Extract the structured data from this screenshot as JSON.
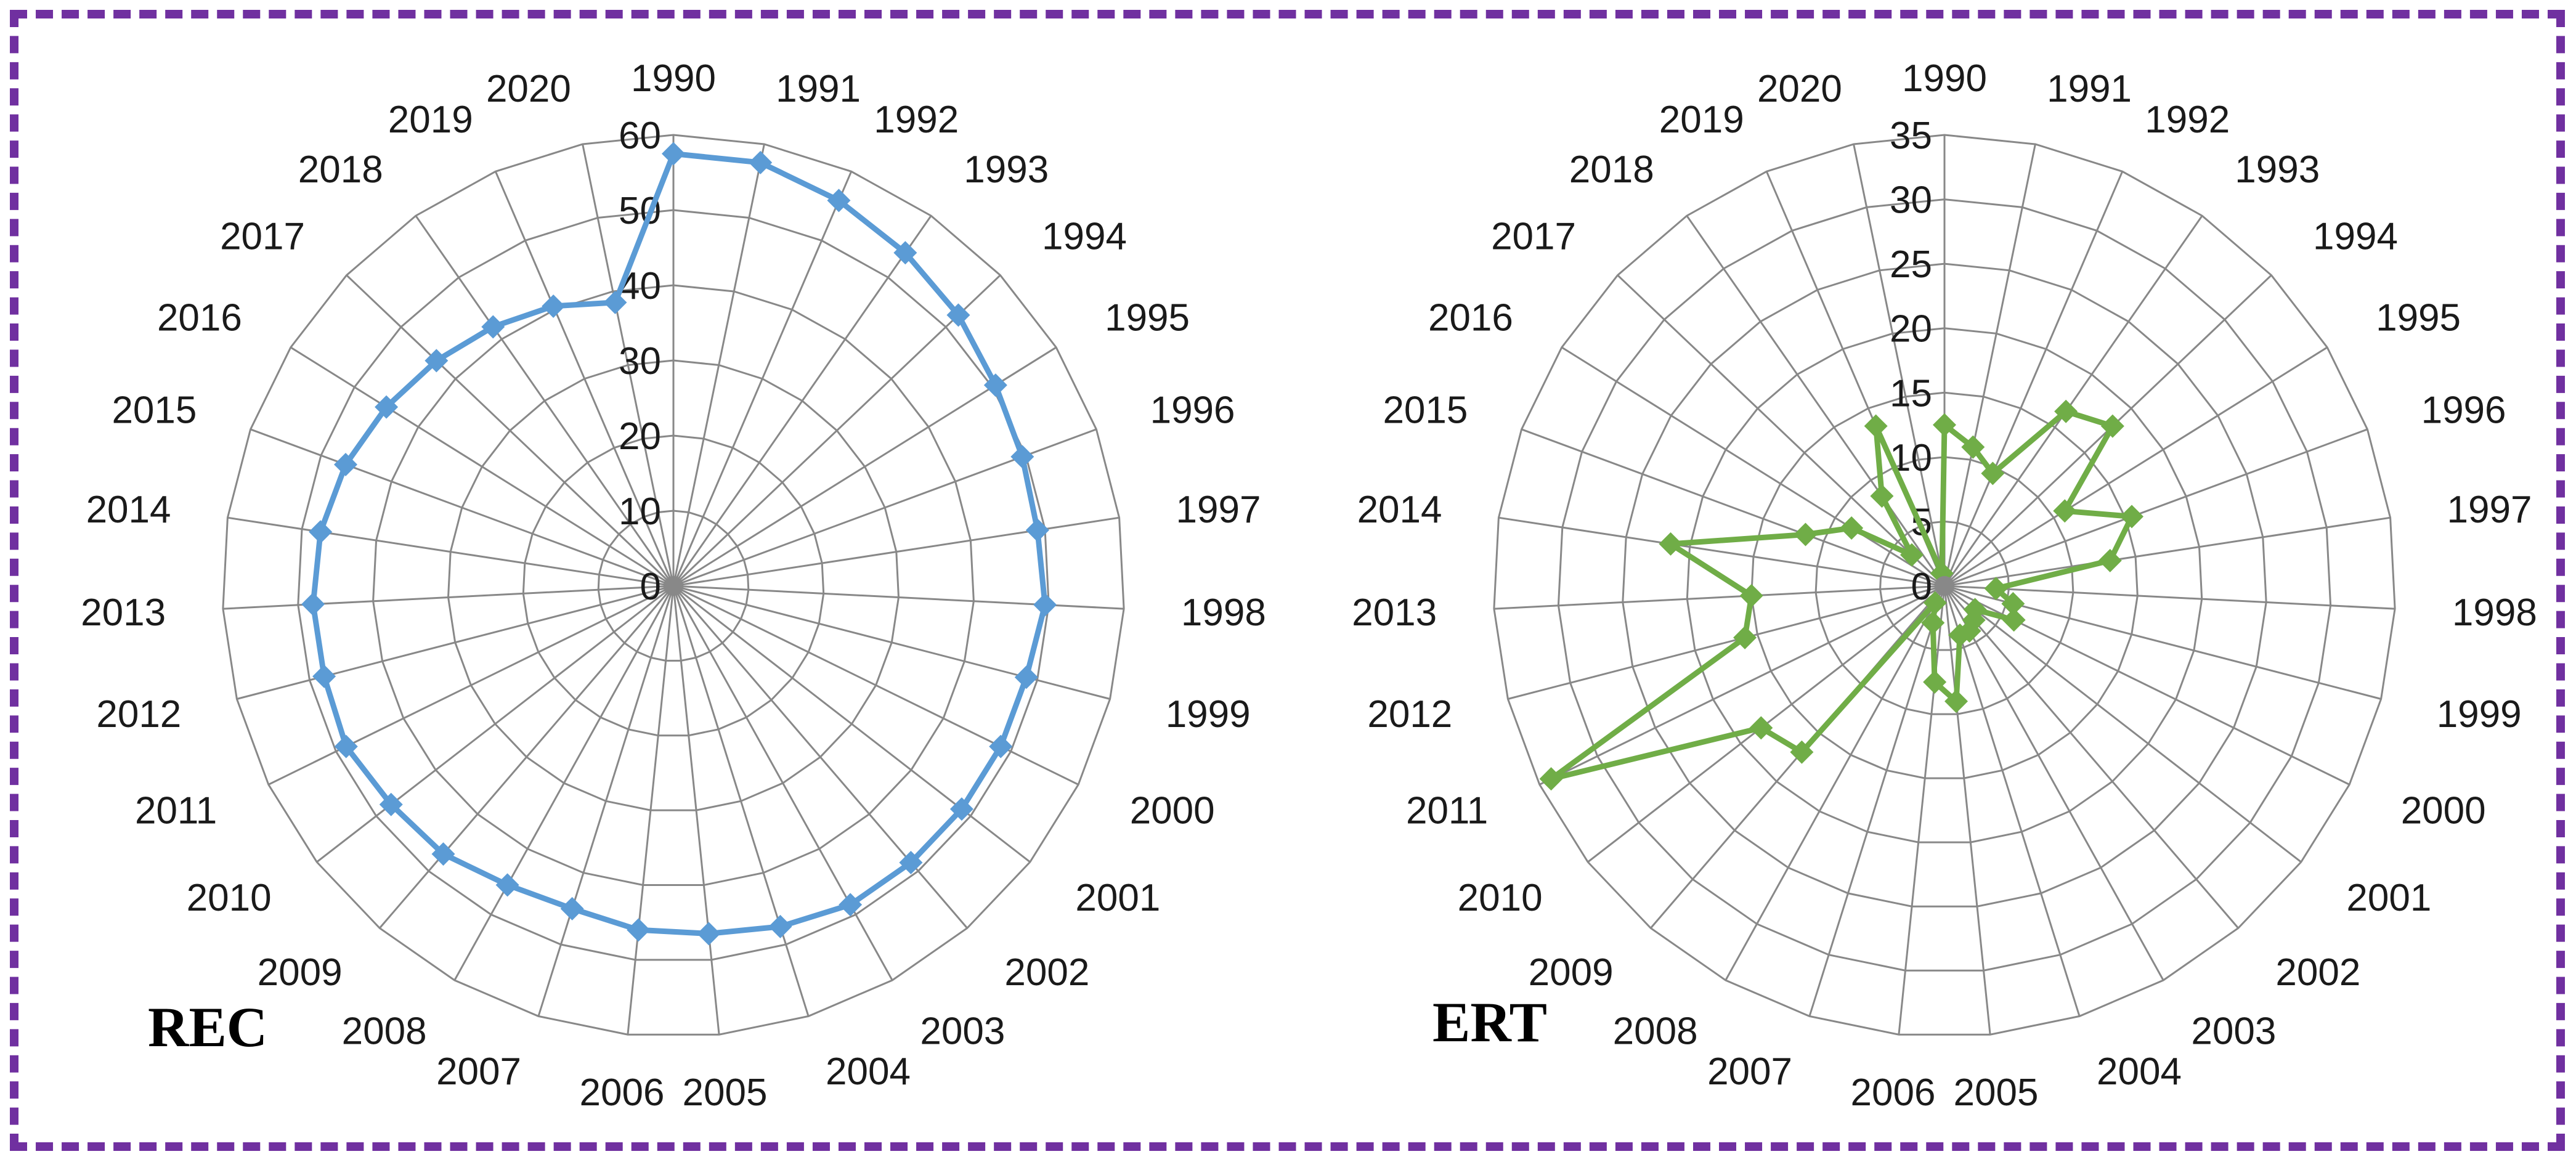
{
  "chart_data": [
    {
      "type": "radar",
      "title": "REC",
      "categories": [
        "1990",
        "1991",
        "1992",
        "1993",
        "1994",
        "1995",
        "1996",
        "1997",
        "1998",
        "1999",
        "2000",
        "2001",
        "2002",
        "2003",
        "2004",
        "2005",
        "2006",
        "2007",
        "2008",
        "2009",
        "2010",
        "2011",
        "2012",
        "2013",
        "2014",
        "2015",
        "2016",
        "2017",
        "2018",
        "2019",
        "2020"
      ],
      "ticks": [
        "0",
        "10",
        "20",
        "30",
        "40",
        "50",
        "60"
      ],
      "rlim": [
        0,
        60
      ],
      "series": [
        {
          "name": "REC",
          "color": "#5b9bd5",
          "values": [
            57.5,
            57.5,
            55.8,
            54.0,
            52.3,
            50.5,
            49.5,
            49.0,
            49.5,
            48.5,
            48.5,
            48.5,
            48.5,
            48.5,
            47.5,
            46.5,
            46.0,
            45.0,
            45.5,
            47.0,
            47.5,
            48.5,
            48.0,
            48.0,
            47.5,
            46.5,
            45.0,
            43.5,
            42.0,
            40.5,
            38.5
          ]
        }
      ]
    },
    {
      "type": "radar",
      "title": "ERT",
      "categories": [
        "1990",
        "1991",
        "1992",
        "1993",
        "1994",
        "1995",
        "1996",
        "1997",
        "1998",
        "1999",
        "2000",
        "2001",
        "2002",
        "2003",
        "2004",
        "2005",
        "2006",
        "2007",
        "2008",
        "2009",
        "2010",
        "2011",
        "2012",
        "2013",
        "2014",
        "2015",
        "2016",
        "2017",
        "2018",
        "2019",
        "2020"
      ],
      "ticks": [
        "0",
        "5",
        "10",
        "15",
        "20",
        "25",
        "30",
        "35"
      ],
      "rlim": [
        0,
        35
      ],
      "series": [
        {
          "name": "ERT",
          "color": "#70ad47",
          "values": [
            12.5,
            11.0,
            9.5,
            16.5,
            18.0,
            11.0,
            15.5,
            13.0,
            4.0,
            5.5,
            6.0,
            3.0,
            3.5,
            4.0,
            4.0,
            9.0,
            7.5,
            3.0,
            1.5,
            17.0,
            18.0,
            34.0,
            16.0,
            15.0,
            21.5,
            11.5,
            8.5,
            3.5,
            8.5,
            13.5,
            1.0
          ]
        }
      ]
    }
  ]
}
